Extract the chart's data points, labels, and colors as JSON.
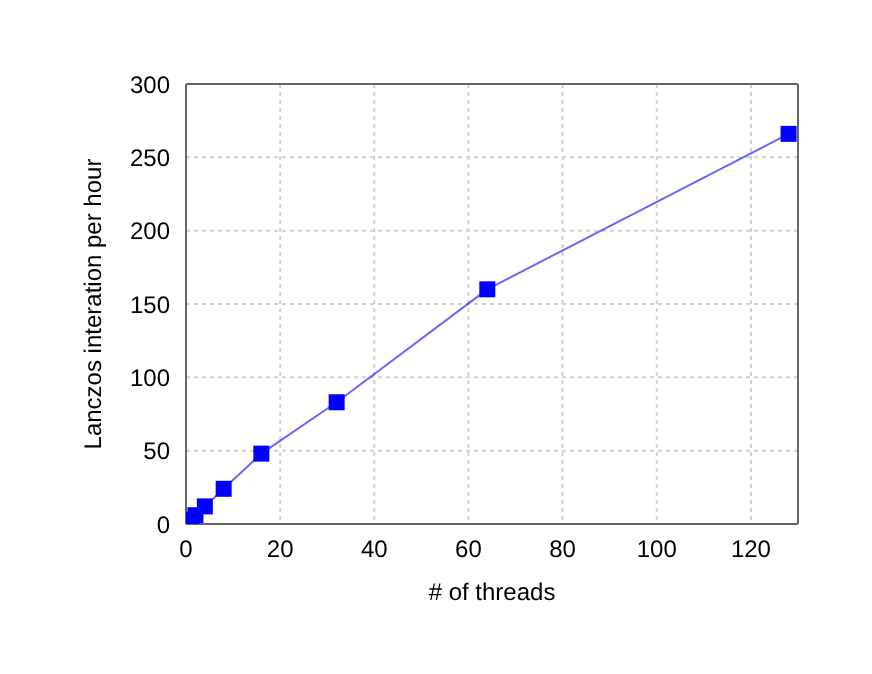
{
  "chart_data": {
    "type": "line",
    "xlabel": "# of threads",
    "ylabel": "Lanczos interation per hour",
    "x": [
      1,
      2,
      4,
      8,
      16,
      32,
      64,
      128
    ],
    "series": [
      {
        "color": "#0000ff",
        "values": [
          3,
          6,
          12,
          24,
          48,
          83,
          160,
          266
        ]
      }
    ],
    "xlim": [
      0,
      130
    ],
    "xticks": [
      0,
      20,
      40,
      60,
      80,
      100,
      120
    ],
    "ylim": [
      0,
      300
    ],
    "yticks": [
      0,
      50,
      100,
      150,
      200,
      250,
      300
    ],
    "grid": true,
    "marker": "square",
    "line_style": "solid"
  }
}
